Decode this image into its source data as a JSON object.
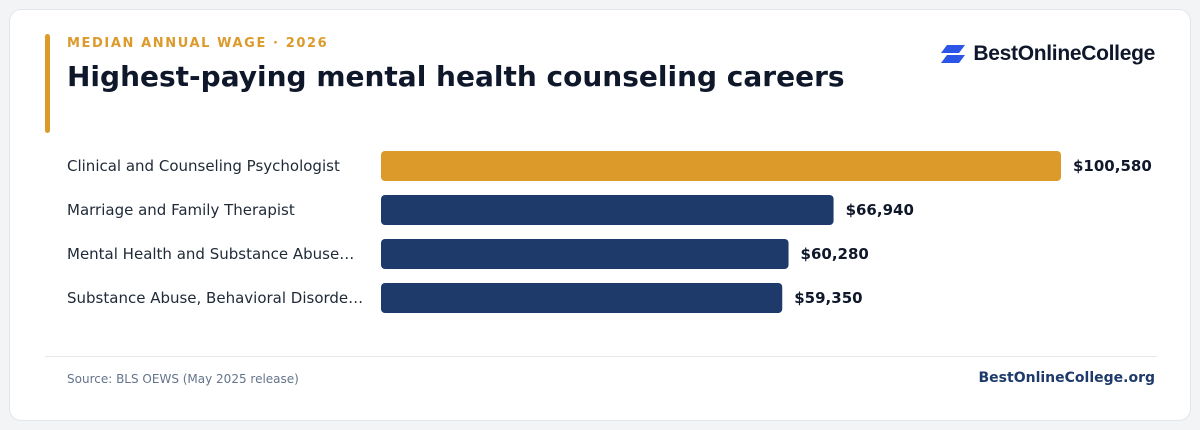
{
  "header": {
    "eyebrow": "MEDIAN ANNUAL WAGE · 2026",
    "title": "Highest-paying mental health counseling careers"
  },
  "logo": {
    "text": "BestOnlineCollege",
    "icon": "bestonlinecollege-logo-icon"
  },
  "colors": {
    "accent": "#dc9a2a",
    "bar_primary": "#1e3a6b",
    "bar_highlight": "#dc9a2a",
    "logo_blue": "#2b55e6"
  },
  "chart_data": {
    "type": "bar",
    "orientation": "horizontal",
    "categories": [
      "Clinical and Counseling Psychologist",
      "Marriage and Family Therapist",
      "Mental Health and Substance Abuse…",
      "Substance Abuse, Behavioral Disorde…"
    ],
    "values": [
      100580,
      66940,
      60280,
      59350
    ],
    "value_labels": [
      "$100,580",
      "$66,940",
      "$60,280",
      "$59,350"
    ],
    "highlight_index": 0,
    "xlim": [
      0,
      100580
    ],
    "grid": false,
    "legend": false
  },
  "footer": {
    "source": "Source: BLS OEWS (May 2025 release)",
    "site": "BestOnlineCollege.org"
  }
}
